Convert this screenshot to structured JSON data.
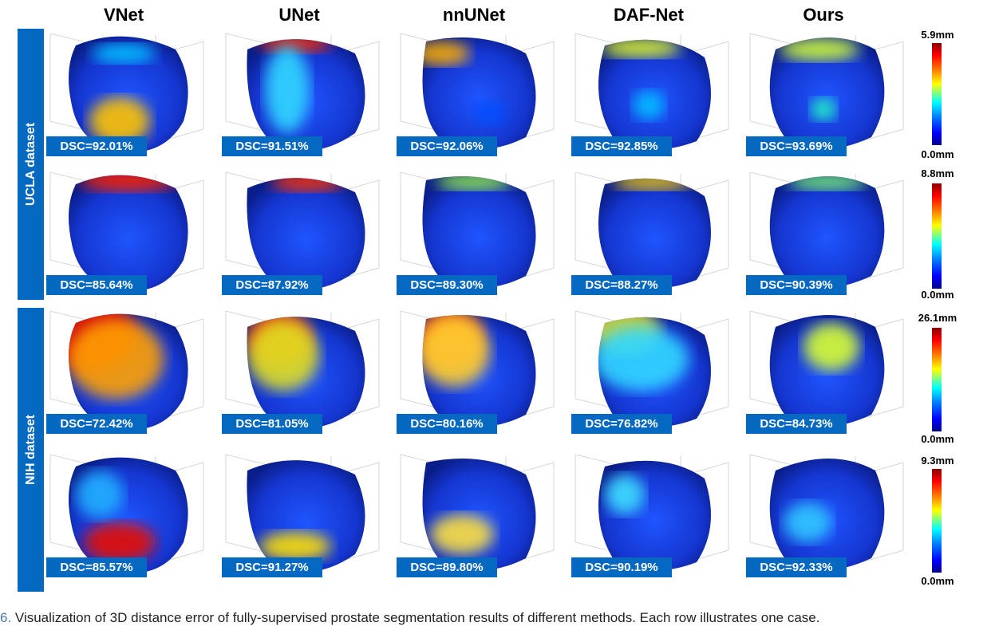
{
  "columns": [
    "VNet",
    "UNet",
    "nnUNet",
    "DAF-Net",
    "Ours"
  ],
  "datasets": [
    {
      "label": "UCLA dataset"
    },
    {
      "label": "NIH dataset"
    }
  ],
  "rows": [
    {
      "dsc": [
        "DSC=92.01%",
        "DSC=91.51%",
        "DSC=92.06%",
        "DSC=92.85%",
        "DSC=93.69%"
      ],
      "colorbar": {
        "max": "5.9mm",
        "min": "0.0mm"
      }
    },
    {
      "dsc": [
        "DSC=85.64%",
        "DSC=87.92%",
        "DSC=89.30%",
        "DSC=88.27%",
        "DSC=90.39%"
      ],
      "colorbar": {
        "max": "8.8mm",
        "min": "0.0mm"
      }
    },
    {
      "dsc": [
        "DSC=72.42%",
        "DSC=81.05%",
        "DSC=80.16%",
        "DSC=76.82%",
        "DSC=84.73%"
      ],
      "colorbar": {
        "max": "26.1mm",
        "min": "0.0mm"
      }
    },
    {
      "dsc": [
        "DSC=85.57%",
        "DSC=91.27%",
        "DSC=89.80%",
        "DSC=90.19%",
        "DSC=92.33%"
      ],
      "colorbar": {
        "max": "9.3mm",
        "min": "0.0mm"
      }
    }
  ],
  "caption": {
    "number": "6.",
    "text": "Visualization of 3D distance error of fully-supervised prostate segmentation results of different methods. Each row illustrates one case."
  },
  "colors": {
    "label_blue": "#0568c1",
    "surface_base": "#1a3fd6",
    "error_high": "#ff0000"
  }
}
